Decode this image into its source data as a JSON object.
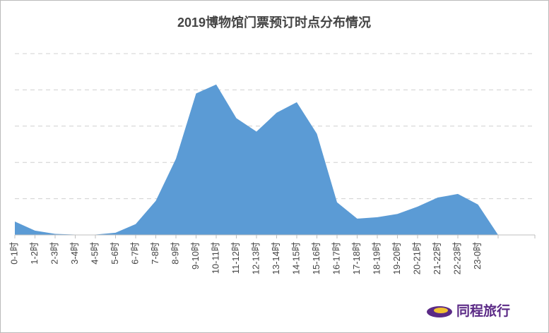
{
  "chart_data": {
    "type": "area",
    "title": "2019博物馆门票预订时点分布情况",
    "categories": [
      "0-1时",
      "1-2时",
      "2-3时",
      "3-4时",
      "4-5时",
      "5-6时",
      "6-7时",
      "7-8时",
      "8-9时",
      "9-10时",
      "10-11时",
      "11-12时",
      "12-13时",
      "13-14时",
      "14-15时",
      "15-16时",
      "16-17时",
      "17-18时",
      "18-19时",
      "19-20时",
      "20-21时",
      "21-22时",
      "22-23时",
      "23-0时",
      null
    ],
    "values": [
      0.37,
      0.12,
      0.03,
      0.01,
      0.01,
      0.06,
      0.3,
      0.94,
      2.1,
      3.9,
      4.15,
      3.22,
      2.85,
      3.37,
      3.66,
      2.79,
      0.9,
      0.45,
      0.49,
      0.58,
      0.78,
      1.03,
      1.13,
      0.84,
      0
    ],
    "color": "#5b9bd5",
    "ylim": [
      0,
      5
    ],
    "yticks": [
      1,
      2,
      3,
      4,
      5
    ],
    "grid": true
  },
  "brand": "同程旅行"
}
